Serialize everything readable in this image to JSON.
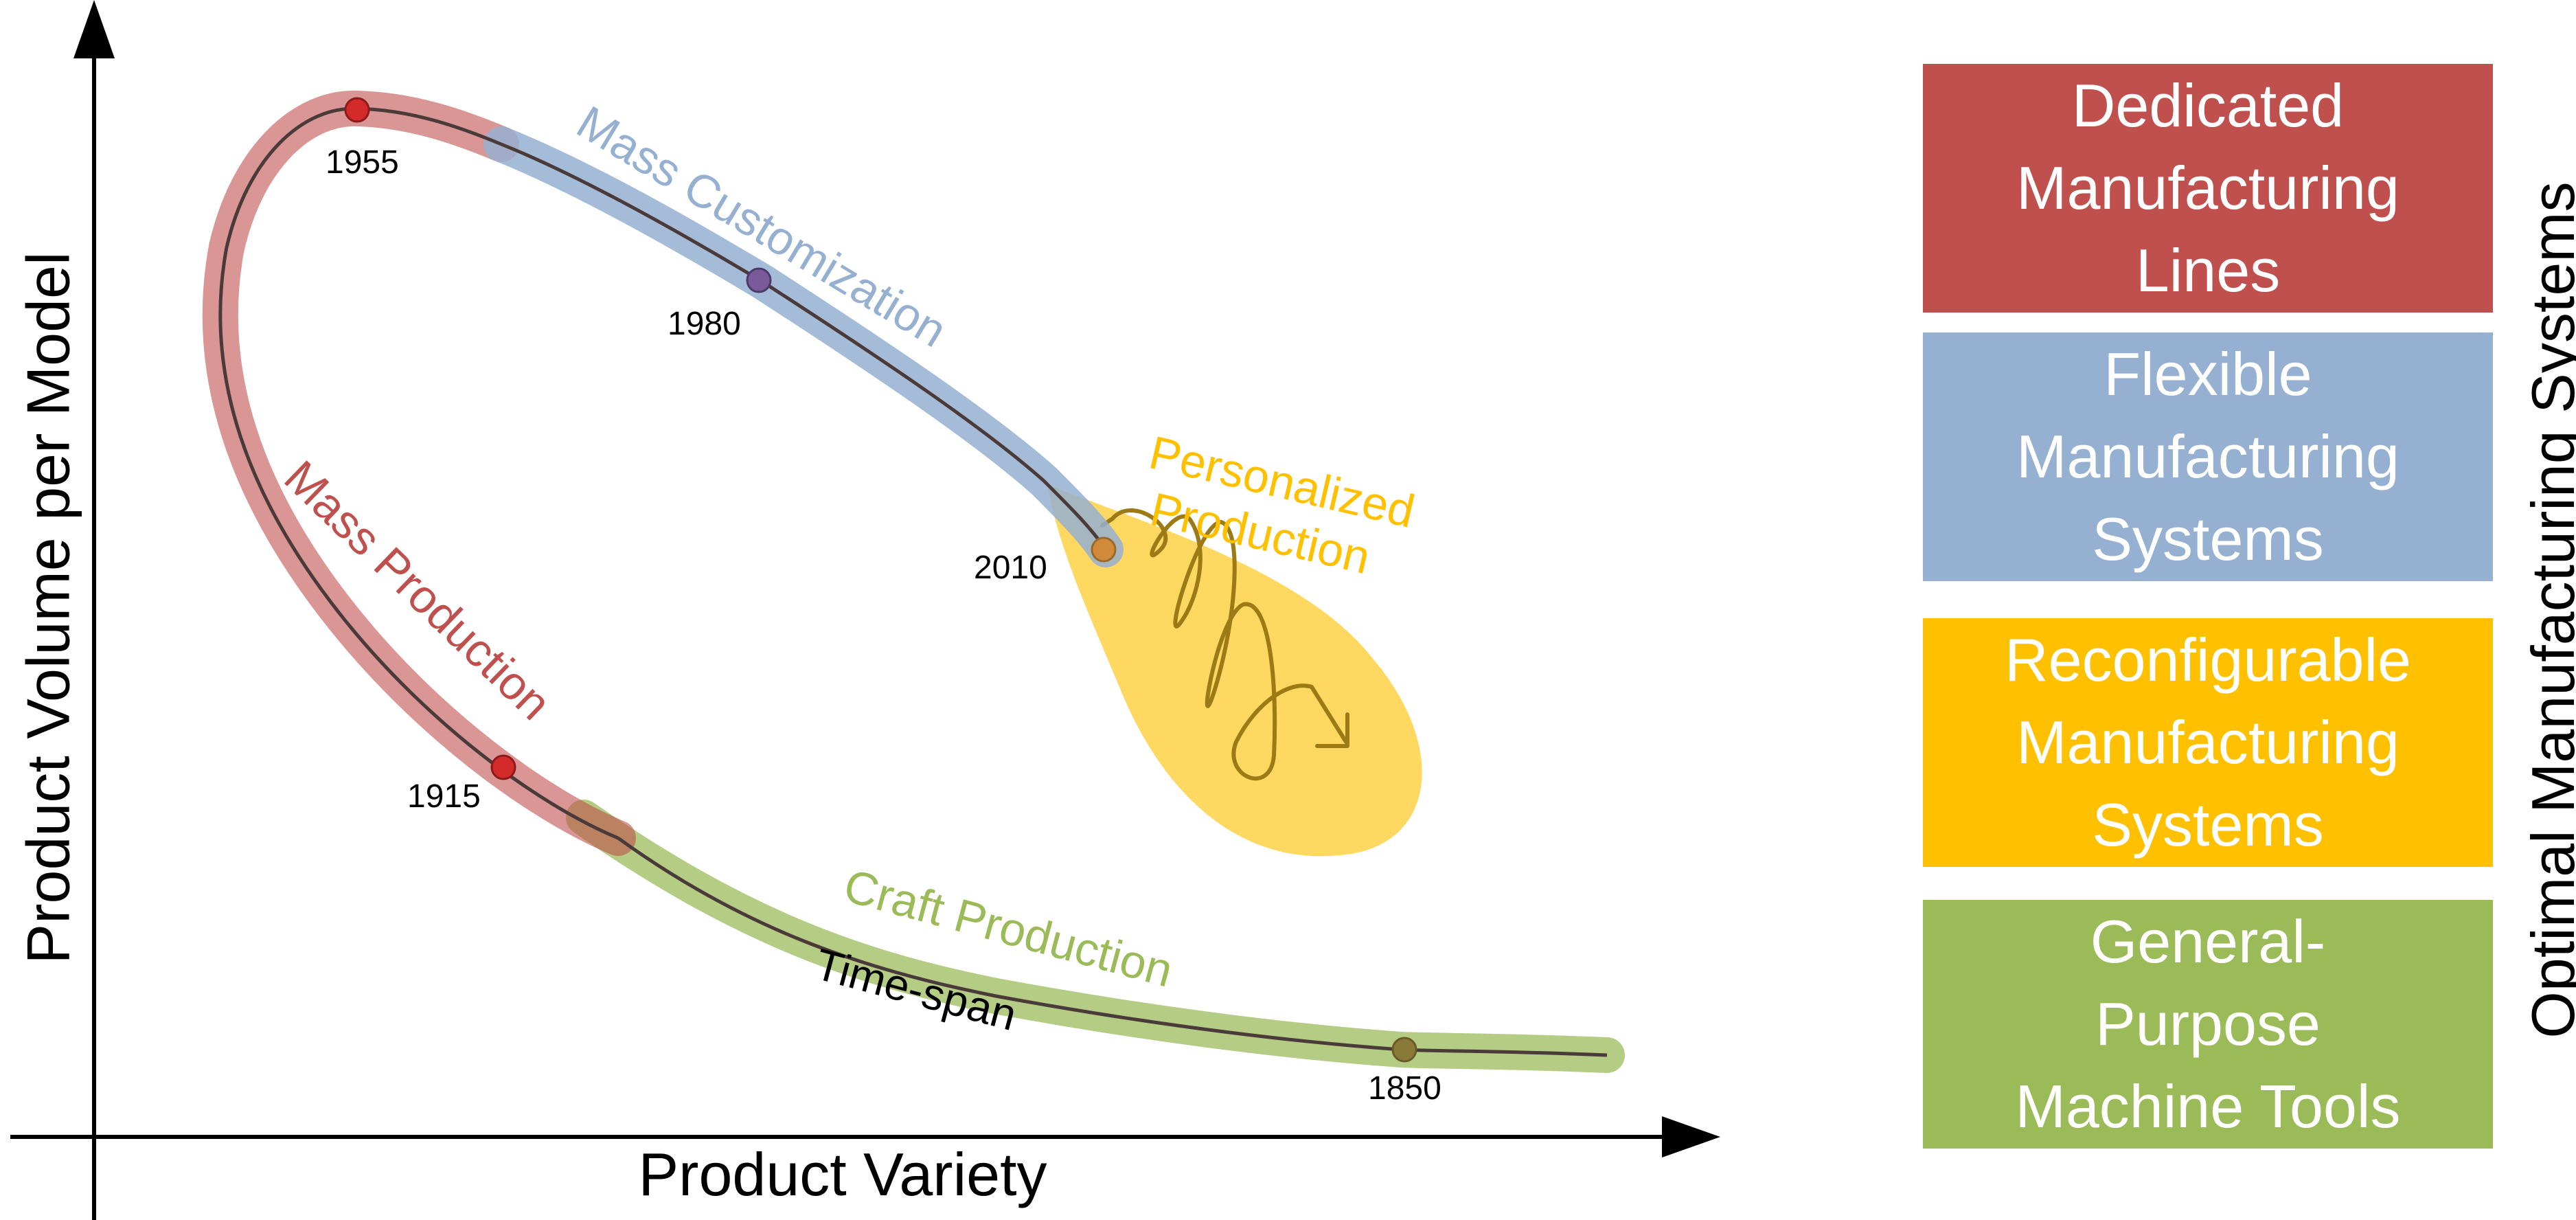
{
  "axes": {
    "y_label": "Product Volume per Model",
    "x_label": "Product Variety"
  },
  "curve": {
    "time_axis_label": "Time-span",
    "years": [
      "1850",
      "1915",
      "1955",
      "1980",
      "2010"
    ]
  },
  "paradigms": {
    "craft": "Craft Production",
    "mass_production": "Mass Production",
    "mass_customization": "Mass Customization",
    "personalized": "Personalized\nProduction"
  },
  "legend": {
    "title": "Optimal Manufacturing Systems",
    "items": [
      {
        "label": "Dedicated\nManufacturing\nLines",
        "color": "#c0504d"
      },
      {
        "label": "Flexible\nManufacturing\nSystems",
        "color": "#95b0d1"
      },
      {
        "label": "Reconfigurable\nManufacturing\nSystems",
        "color": "#ffc000"
      },
      {
        "label": "General-\nPurpose\nMachine Tools",
        "color": "#9bbb59"
      }
    ]
  },
  "colors": {
    "craft": "#9bbb59",
    "mass_production": "#c0504d",
    "mass_customization": "#95b0d1",
    "personalized": "#ffc000",
    "curve_line": "#4a3a3a"
  }
}
